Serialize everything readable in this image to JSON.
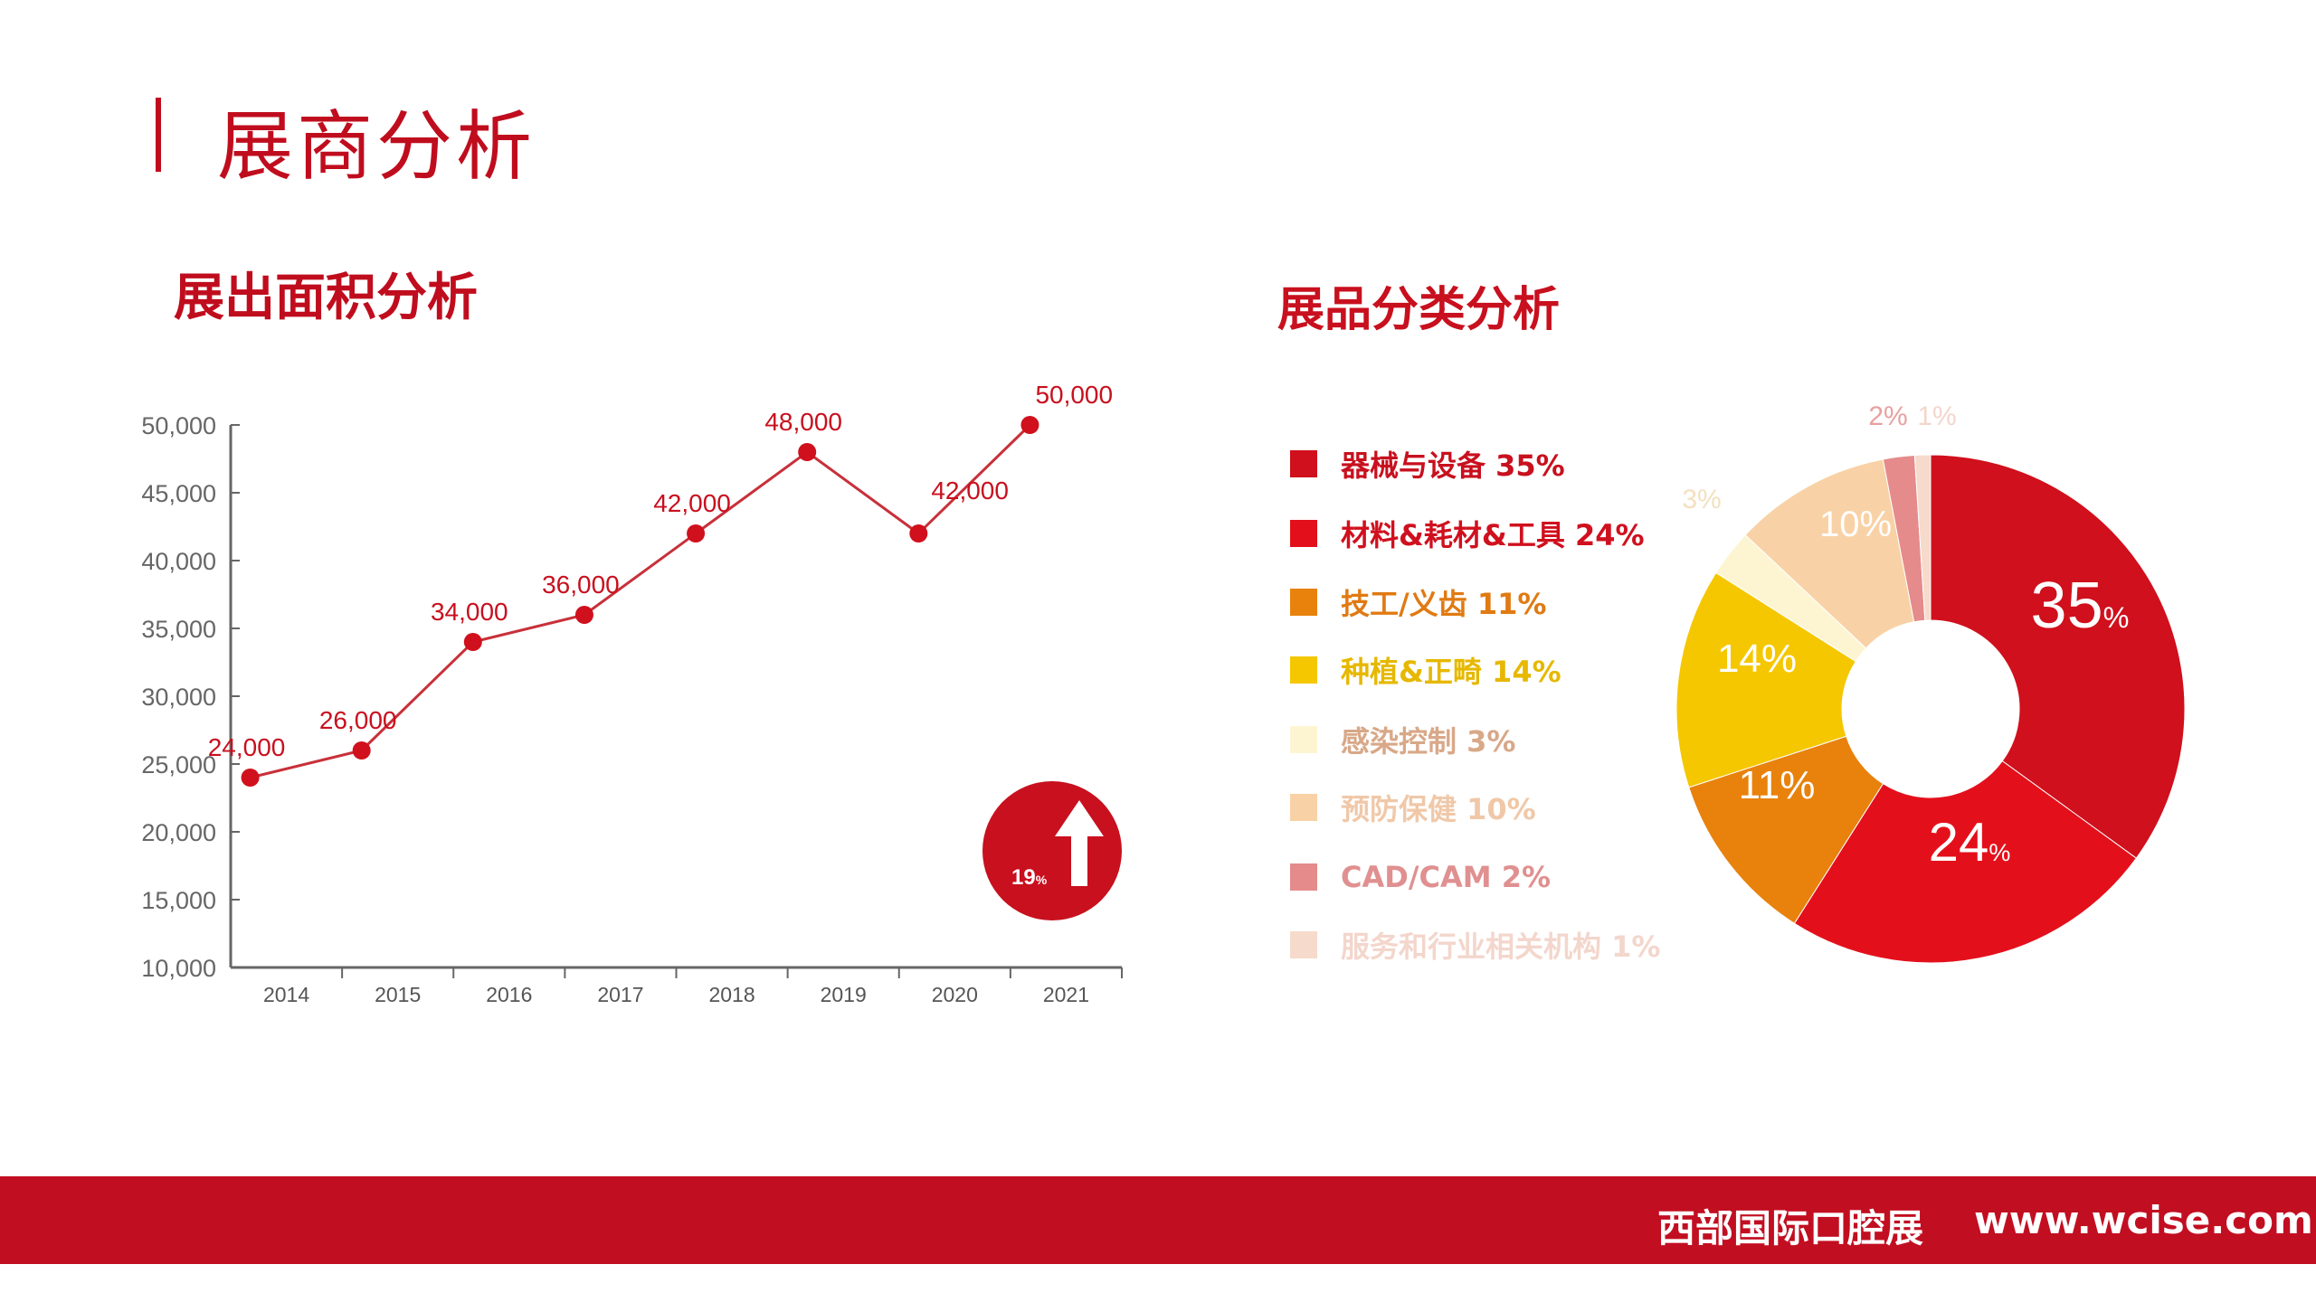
{
  "header": {
    "title": "展商分析"
  },
  "footer": {
    "name": "西部国际口腔展",
    "url": "www.wcise.com"
  },
  "colors": {
    "accent": "#c00d1e",
    "footer": "#c20e21",
    "line": "#c8303a",
    "axis": "#666666"
  },
  "chart_data": [
    {
      "type": "line",
      "title": "展出面积分析",
      "categories": [
        "2014",
        "2015",
        "2016",
        "2017",
        "2018",
        "2019",
        "2020",
        "2021"
      ],
      "values": [
        24000,
        26000,
        34000,
        36000,
        42000,
        48000,
        42000,
        50000
      ],
      "data_labels": [
        "24,000",
        "26,000",
        "34,000",
        "36,000",
        "42,000",
        "48,000",
        "42,000",
        "50,000"
      ],
      "ylim": [
        10000,
        50000
      ],
      "yticks": [
        "10,000",
        "15,000",
        "20,000",
        "25,000",
        "30,000",
        "35,000",
        "40,000",
        "45,000",
        "50,000"
      ],
      "grid": false,
      "badge": {
        "text": "19",
        "unit": "%",
        "icon": "arrow-up-icon"
      }
    },
    {
      "type": "pie",
      "title": "展品分类分析",
      "donut": true,
      "legend_position": "left",
      "slices": [
        {
          "label": "器械与设备",
          "value": 35,
          "text": "35",
          "color": "#d0101c",
          "legend": "器械与设备 35%"
        },
        {
          "label": "材料&耗材&工具",
          "value": 24,
          "text": "24",
          "color": "#e3101b",
          "legend": "材料&耗材&工具 24%"
        },
        {
          "label": "技工/义齿",
          "value": 11,
          "text": "11%",
          "color": "#e8820c",
          "legend": "技工/义齿 11%"
        },
        {
          "label": "种植&正畸",
          "value": 14,
          "text": "14%",
          "color": "#f5c700",
          "legend": "种植&正畸 14%"
        },
        {
          "label": "感染控制",
          "value": 3,
          "text": "3%",
          "color": "#fdf5d2",
          "legend": "感染控制 3%"
        },
        {
          "label": "预防保健",
          "value": 10,
          "text": "10%",
          "color": "#f8d2a6",
          "legend": "预防保健 10%"
        },
        {
          "label": "CAD/CAM",
          "value": 2,
          "text": "2%",
          "color": "#e58b8b",
          "legend": "CAD/CAM 2%"
        },
        {
          "label": "服务和行业相关机构",
          "value": 1,
          "text": "1%",
          "color": "#f6dacb",
          "legend": "服务和行业相关机构 1%"
        }
      ],
      "legend_text_colors": [
        "#c8101e",
        "#d0101e",
        "#e07a12",
        "#e6b800",
        "#d8a888",
        "#f0c8a8",
        "#e09090",
        "#f3d6cc"
      ]
    }
  ]
}
